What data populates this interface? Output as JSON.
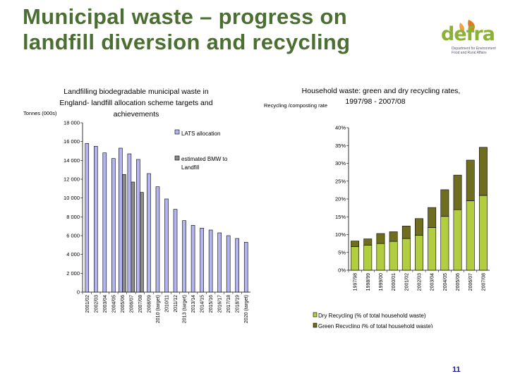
{
  "page": {
    "title": "Municipal waste – progress on landfill diversion and recycling",
    "logo_text": "defra",
    "logo_tagline": [
      "Department for Environment",
      "Food and Rural Affairs"
    ],
    "page_number": "11",
    "colors": {
      "title": "#4b6e33",
      "logo_green": "#8bb135",
      "logo_leaf": "#e07a1f",
      "page_number": "#1a1a9a"
    }
  },
  "chart_data": [
    {
      "type": "bar",
      "title": "Landfilling biodegradable municipal waste in England- landfill allocation scheme targets and achievements",
      "title_lines": [
        "Landfilling biodegradable municipal waste in",
        "England- landfill allocation scheme targets and",
        "achievements"
      ],
      "ylabel": "Tonnes (000s)",
      "ylim": [
        0,
        18000
      ],
      "yticks": [
        0,
        2000,
        4000,
        6000,
        8000,
        10000,
        12000,
        14000,
        16000,
        18000
      ],
      "ytick_labels": [
        "0",
        "2 000",
        "4 000",
        "6 000",
        "8 000",
        "10 000",
        "12 000",
        "14 000",
        "16 000",
        "18 000"
      ],
      "categories": [
        "2001/02",
        "2002/03",
        "2003/04",
        "2004/05",
        "2005/06",
        "2006/07",
        "2007/08",
        "2008/09",
        "2010 (target)",
        "2010/11",
        "2011/12",
        "2013 (target)",
        "2013/14",
        "2014/15",
        "2015/16",
        "2016/17",
        "2017/18",
        "2018/19",
        "2020 (target)"
      ],
      "series": [
        {
          "name": "LATS allocation",
          "color": "#b4b4f0",
          "values": [
            15800,
            15500,
            14800,
            14200,
            15300,
            14700,
            14100,
            12600,
            11200,
            9900,
            8800,
            7600,
            7100,
            6800,
            6600,
            6300,
            6000,
            5700,
            5300
          ]
        },
        {
          "name": "estimated BMW to Landfill",
          "color": "#8a8a8a",
          "values": [
            null,
            null,
            null,
            null,
            12500,
            11700,
            10600,
            null,
            null,
            null,
            null,
            null,
            null,
            null,
            null,
            null,
            null,
            null,
            null
          ]
        }
      ],
      "legend_position": "top-right",
      "grid": false
    },
    {
      "type": "bar",
      "stacked": true,
      "title": "Household waste: green and dry recycling rates, 1997/98 - 2007/08",
      "title_lines": [
        "Household waste: green and dry recycling rates,",
        "1997/98 - 2007/08"
      ],
      "ylabel": "Recycling /composting rate",
      "ylim": [
        0,
        40
      ],
      "yticks": [
        0,
        5,
        10,
        15,
        20,
        25,
        30,
        35,
        40
      ],
      "ytick_labels": [
        "0%",
        "5%",
        "10%",
        "15%",
        "20%",
        "25%",
        "30%",
        "35%",
        "40%"
      ],
      "categories": [
        "1997/98",
        "1998/99",
        "1999/00",
        "2000/01",
        "2001/02",
        "2002/03",
        "2003/04",
        "2004/05",
        "2005/06",
        "2006/07",
        "2007/08"
      ],
      "series": [
        {
          "name": "Dry Recycling (% of total household waste)",
          "color": "#b2cd3f",
          "values": [
            6.6,
            7.0,
            7.5,
            8.1,
            8.9,
            9.8,
            12.0,
            15.1,
            17.0,
            19.5,
            21.0
          ]
        },
        {
          "name": "Green Recycling (% of total household waste)",
          "color": "#6e6e1e",
          "values": [
            1.6,
            1.8,
            2.8,
            2.7,
            3.5,
            4.7,
            5.6,
            7.5,
            9.7,
            11.4,
            13.5
          ]
        }
      ],
      "legend_position": "bottom",
      "grid": false
    }
  ]
}
